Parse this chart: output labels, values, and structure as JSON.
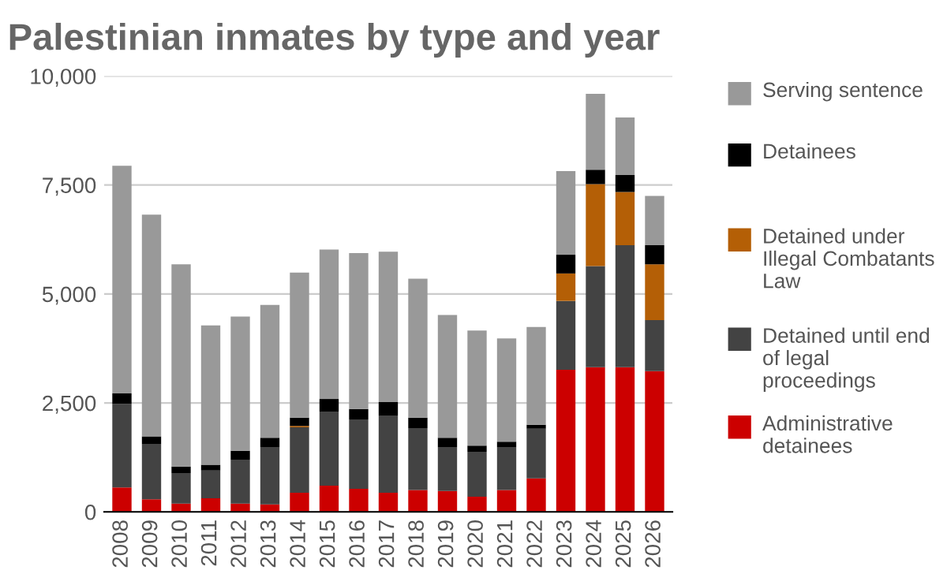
{
  "chart_data": {
    "type": "bar",
    "title": "Palestinian inmates by type and year",
    "stacked": true,
    "legend": "right",
    "grid": "y",
    "categories": [
      "2008",
      "2009",
      "2010",
      "2011",
      "2012",
      "2013",
      "2014",
      "2015",
      "2016",
      "2017",
      "2018",
      "2019",
      "2020",
      "2021",
      "2022",
      "2023",
      "2024",
      "2025",
      "2026"
    ],
    "ylim": [
      0,
      10000
    ],
    "yticks": [
      {
        "value": 0,
        "label": "0"
      },
      {
        "value": 2500,
        "label": "2,500"
      },
      {
        "value": 5000,
        "label": "5,000"
      },
      {
        "value": 7500,
        "label": "7,500"
      },
      {
        "value": 10000,
        "label": "10,000"
      }
    ],
    "series": [
      {
        "name": "Administrative detainees",
        "color": "#cc0000",
        "values": [
          560,
          290,
          190,
          310,
          190,
          170,
          440,
          600,
          530,
          440,
          500,
          480,
          350,
          500,
          770,
          3260,
          3320,
          3320,
          3230
        ]
      },
      {
        "name": "Detained until end of legal proceedings",
        "color": "#434343",
        "values": [
          1920,
          1270,
          700,
          640,
          1010,
          1320,
          1500,
          1700,
          1590,
          1770,
          1420,
          1010,
          1030,
          990,
          1140,
          1580,
          2320,
          2800,
          1170
        ]
      },
      {
        "name": "Detained under Illegal Combatants Law",
        "color": "#b45f06",
        "values": [
          0,
          0,
          0,
          0,
          0,
          0,
          30,
          0,
          0,
          0,
          0,
          0,
          0,
          0,
          0,
          630,
          1880,
          1220,
          1280
        ]
      },
      {
        "name": "Detainees",
        "color": "#000000",
        "values": [
          240,
          170,
          150,
          130,
          200,
          210,
          190,
          290,
          240,
          310,
          240,
          210,
          140,
          120,
          90,
          430,
          330,
          390,
          440
        ]
      },
      {
        "name": "Serving sentence",
        "color": "#999999",
        "values": [
          5220,
          5090,
          4640,
          3200,
          3080,
          3050,
          3330,
          3430,
          3580,
          3450,
          3190,
          2820,
          2640,
          2370,
          2240,
          1920,
          1740,
          1320,
          1130
        ]
      }
    ]
  }
}
